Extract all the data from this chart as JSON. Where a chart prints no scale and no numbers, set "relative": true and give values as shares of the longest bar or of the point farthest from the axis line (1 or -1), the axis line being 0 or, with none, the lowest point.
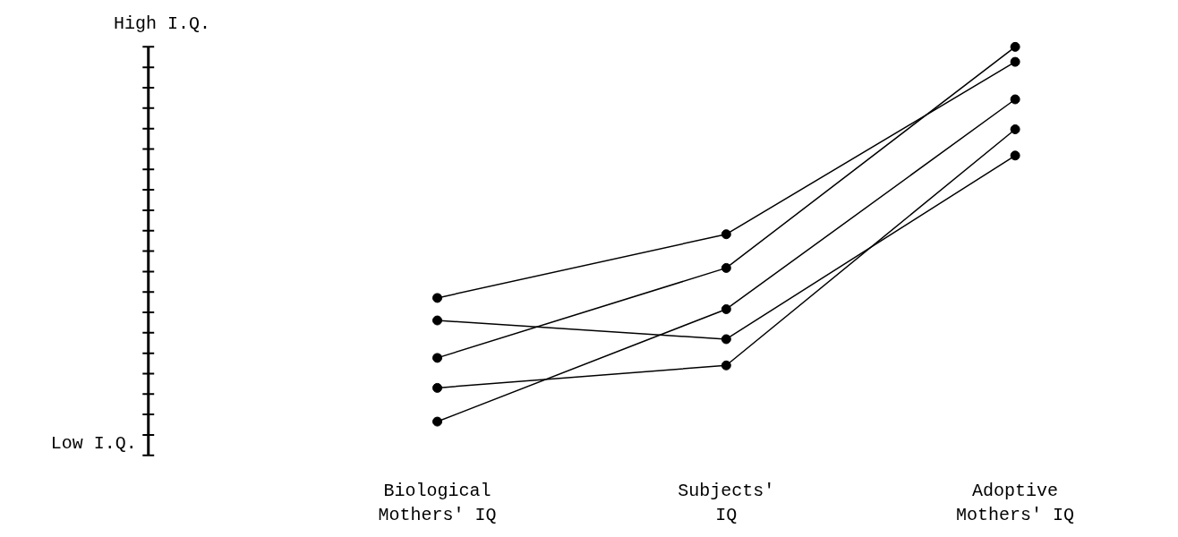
{
  "chart_data": {
    "type": "line",
    "categories": [
      "Biological\nMothers' IQ",
      "Subjects'\nIQ",
      "Adoptive\nMothers' IQ"
    ],
    "series": [
      {
        "color": "#000000",
        "values": [
          0.33,
          0.5,
          0.96
        ]
      },
      {
        "color": "#000000",
        "values": [
          0.27,
          0.22,
          0.71
        ]
      },
      {
        "color": "#000000",
        "values": [
          0.17,
          0.41,
          1.0
        ]
      },
      {
        "color": "#000000",
        "values": [
          0.09,
          0.15,
          0.78
        ]
      },
      {
        "color": "#000000",
        "values": [
          0.0,
          0.3,
          0.86
        ]
      }
    ],
    "relative": true,
    "annotations": [
      "High I.Q.",
      "Low I.Q."
    ],
    "marker": "circle",
    "line_style": "solid"
  }
}
